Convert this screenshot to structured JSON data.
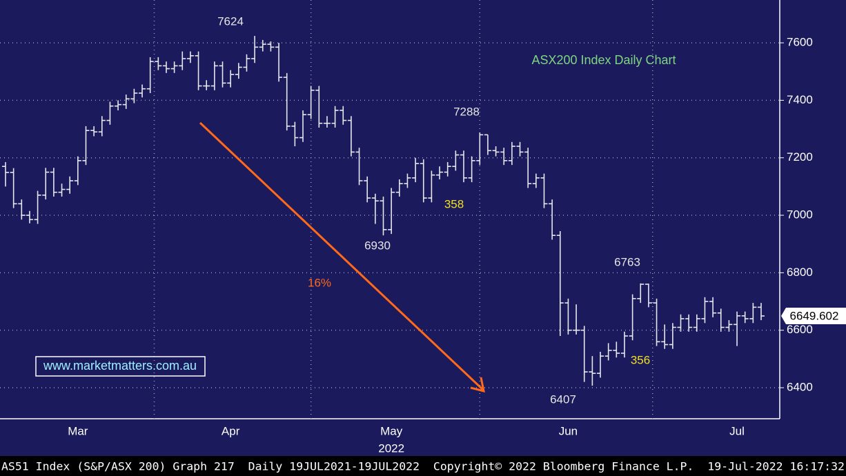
{
  "chart_data": {
    "type": "ohlc",
    "title": "ASX200 Index Daily Chart",
    "watermark": "www.marketmatters.com.au",
    "footer": "AS51 Index (S&P/ASX 200) Graph 217  Daily 19JUL2021-19JUL2022  Copyright© 2022 Bloomberg Finance L.P.  19-Jul-2022 16:17:32",
    "annotations": [
      "7624",
      "7288",
      "6930",
      "6407",
      "6763",
      "358",
      "356",
      "16%"
    ],
    "x_year": "2022",
    "categories": [
      null,
      null,
      null,
      null,
      null,
      null,
      null,
      null,
      null,
      "Mar",
      null,
      null,
      null,
      null,
      null,
      null,
      null,
      null,
      null,
      null,
      null,
      null,
      null,
      null,
      null,
      null,
      null,
      null,
      "Apr",
      null,
      null,
      null,
      null,
      null,
      null,
      null,
      null,
      null,
      null,
      null,
      null,
      null,
      null,
      null,
      null,
      null,
      null,
      null,
      "May",
      null,
      null,
      null,
      null,
      null,
      null,
      null,
      null,
      null,
      null,
      null,
      null,
      null,
      null,
      null,
      null,
      null,
      null,
      null,
      null,
      null,
      "Jun",
      null,
      null,
      null,
      null,
      null,
      null,
      null,
      null,
      null,
      null,
      null,
      null,
      null,
      null,
      null,
      null,
      null,
      null,
      null,
      null,
      "Jul",
      null,
      null,
      null
    ],
    "open": [
      7170,
      7149,
      7040,
      7000,
      6985,
      7070,
      7150,
      7080,
      7090,
      7120,
      7190,
      7295,
      7290,
      7330,
      7380,
      7385,
      7405,
      7425,
      7440,
      7535,
      7520,
      7510,
      7520,
      7545,
      7555,
      7450,
      7450,
      7520,
      7460,
      7490,
      7515,
      7545,
      7585,
      7595,
      7585,
      7480,
      7310,
      7270,
      7350,
      7435,
      7320,
      7320,
      7365,
      7330,
      7220,
      7120,
      7060,
      7050,
      6950,
      7080,
      7110,
      7130,
      7180,
      7060,
      7140,
      7150,
      7170,
      7210,
      7130,
      7190,
      7280,
      7225,
      7220,
      7190,
      7240,
      7220,
      7110,
      7130,
      7040,
      6930,
      6695,
      6600,
      6600,
      6455,
      6450,
      6510,
      6530,
      6520,
      6580,
      6710,
      6760,
      6695,
      6560,
      6550,
      6610,
      6640,
      6610,
      6640,
      6700,
      6660,
      6610,
      6620,
      6650,
      6640,
      6680
    ],
    "high": [
      7185,
      7164,
      7055,
      7015,
      7085,
      7165,
      7165,
      7110,
      7135,
      7205,
      7310,
      7310,
      7345,
      7395,
      7400,
      7420,
      7440,
      7455,
      7550,
      7550,
      7535,
      7535,
      7570,
      7570,
      7570,
      7470,
      7535,
      7535,
      7505,
      7530,
      7560,
      7624,
      7610,
      7605,
      7600,
      7495,
      7325,
      7365,
      7450,
      7450,
      7345,
      7380,
      7380,
      7345,
      7235,
      7135,
      7075,
      7065,
      7095,
      7125,
      7145,
      7200,
      7195,
      7155,
      7170,
      7185,
      7225,
      7225,
      7205,
      7288,
      7280,
      7240,
      7235,
      7255,
      7255,
      7235,
      7145,
      7145,
      7055,
      6945,
      6710,
      6690,
      6615,
      6510,
      6525,
      6555,
      6560,
      6595,
      6725,
      6763,
      6762,
      6710,
      6620,
      6625,
      6655,
      6655,
      6655,
      6715,
      6715,
      6675,
      6635,
      6665,
      6665,
      6695,
      6695
    ],
    "low": [
      7100,
      7025,
      6985,
      6972,
      6970,
      7055,
      7065,
      7065,
      7075,
      7105,
      7175,
      7275,
      7275,
      7315,
      7365,
      7370,
      7390,
      7410,
      7425,
      7505,
      7495,
      7495,
      7505,
      7530,
      7435,
      7435,
      7435,
      7445,
      7445,
      7475,
      7500,
      7530,
      7570,
      7570,
      7465,
      7295,
      7240,
      7255,
      7335,
      7305,
      7305,
      7305,
      7315,
      7205,
      7105,
      7045,
      6970,
      6930,
      6935,
      7065,
      7095,
      7115,
      7045,
      7045,
      7125,
      7135,
      7155,
      7115,
      7115,
      7175,
      7210,
      7205,
      7175,
      7175,
      7205,
      7095,
      7095,
      7025,
      6915,
      6580,
      6585,
      6585,
      6420,
      6407,
      6435,
      6495,
      6505,
      6505,
      6565,
      6695,
      6680,
      6545,
      6535,
      6535,
      6595,
      6595,
      6595,
      6625,
      6645,
      6595,
      6595,
      6545,
      6625,
      6625,
      6635
    ],
    "close": [
      7149,
      7040,
      7000,
      6985,
      7070,
      7150,
      7080,
      7090,
      7120,
      7190,
      7295,
      7290,
      7330,
      7380,
      7385,
      7405,
      7425,
      7440,
      7535,
      7520,
      7510,
      7520,
      7545,
      7555,
      7450,
      7450,
      7520,
      7460,
      7490,
      7515,
      7545,
      7585,
      7595,
      7585,
      7480,
      7310,
      7270,
      7350,
      7435,
      7320,
      7320,
      7365,
      7330,
      7220,
      7120,
      7060,
      7050,
      6950,
      7080,
      7110,
      7130,
      7180,
      7060,
      7140,
      7150,
      7170,
      7210,
      7130,
      7190,
      7280,
      7225,
      7220,
      7190,
      7240,
      7220,
      7110,
      7130,
      7040,
      6930,
      6695,
      6600,
      6600,
      6455,
      6450,
      6510,
      6530,
      6520,
      6580,
      6710,
      6760,
      6695,
      6560,
      6550,
      6610,
      6640,
      6610,
      6640,
      6700,
      6660,
      6610,
      6620,
      6650,
      6640,
      6680,
      6649.602
    ],
    "color": "#e8e8f0",
    "ylim": [
      6292,
      7749
    ],
    "yticks": [
      6400,
      6600,
      6800,
      7000,
      7200,
      7400,
      7600
    ],
    "grid": true
  }
}
